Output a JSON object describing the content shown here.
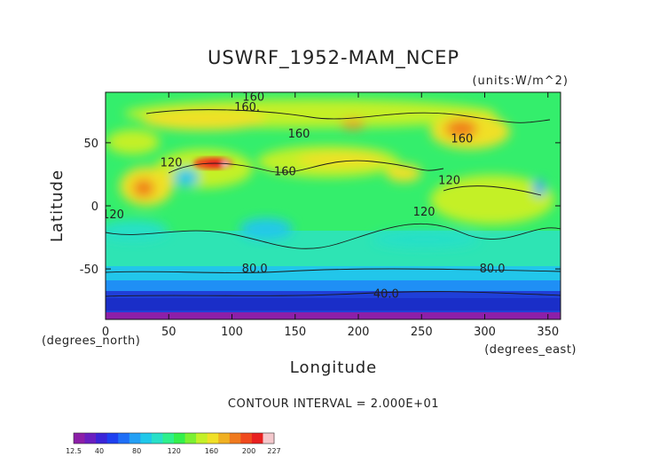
{
  "chart_data": {
    "type": "heatmap",
    "title": "USWRF_1952-MAM_NCEP",
    "units_label": "(units:W/m^2)",
    "xlabel": "Longitude",
    "ylabel": "Latitude",
    "x_units_label": "(degrees_east)",
    "y_units_label": "(degrees_north)",
    "contour_interval_text": "CONTOUR INTERVAL = 2.000E+01",
    "xlim": [
      0,
      360
    ],
    "ylim": [
      -90,
      90
    ],
    "x_ticks": [
      "0",
      "50",
      "100",
      "150",
      "200",
      "250",
      "300",
      "350"
    ],
    "y_ticks": [
      "50",
      "0",
      "-50"
    ],
    "contour_labels": [
      {
        "text": "160.",
        "lon": 112,
        "lat": 78
      },
      {
        "text": "160",
        "lon": 117,
        "lat": 86
      },
      {
        "text": "160",
        "lon": 153,
        "lat": 57
      },
      {
        "text": "160",
        "lon": 142,
        "lat": 27
      },
      {
        "text": "160",
        "lon": 282,
        "lat": 53
      },
      {
        "text": "120",
        "lon": 52,
        "lat": 34
      },
      {
        "text": "120",
        "lon": 272,
        "lat": 20
      },
      {
        "text": "120",
        "lon": 6,
        "lat": -7
      },
      {
        "text": "120",
        "lon": 252,
        "lat": -5
      },
      {
        "text": "80.0",
        "lon": 118,
        "lat": -50
      },
      {
        "text": "80.0",
        "lon": 306,
        "lat": -50
      },
      {
        "text": "40.0",
        "lon": 222,
        "lat": -70
      }
    ],
    "colorbar": {
      "min_label": "12.5",
      "max_label": "227",
      "tick_labels": [
        "40",
        "80",
        "120",
        "160",
        "200"
      ],
      "tick_values": [
        40,
        80,
        120,
        160,
        200
      ],
      "vmin": 12.5,
      "vmax": 227,
      "colors": [
        "#8c1fa8",
        "#6a1fc0",
        "#3b25d8",
        "#1e40f0",
        "#1f6ff7",
        "#24a0f5",
        "#20c8ea",
        "#28e0c8",
        "#2ef08c",
        "#34f04c",
        "#7cf032",
        "#c4f028",
        "#f0e028",
        "#f0b022",
        "#f07a1e",
        "#f04a1e",
        "#e82020",
        "#f4c8cc"
      ]
    }
  }
}
